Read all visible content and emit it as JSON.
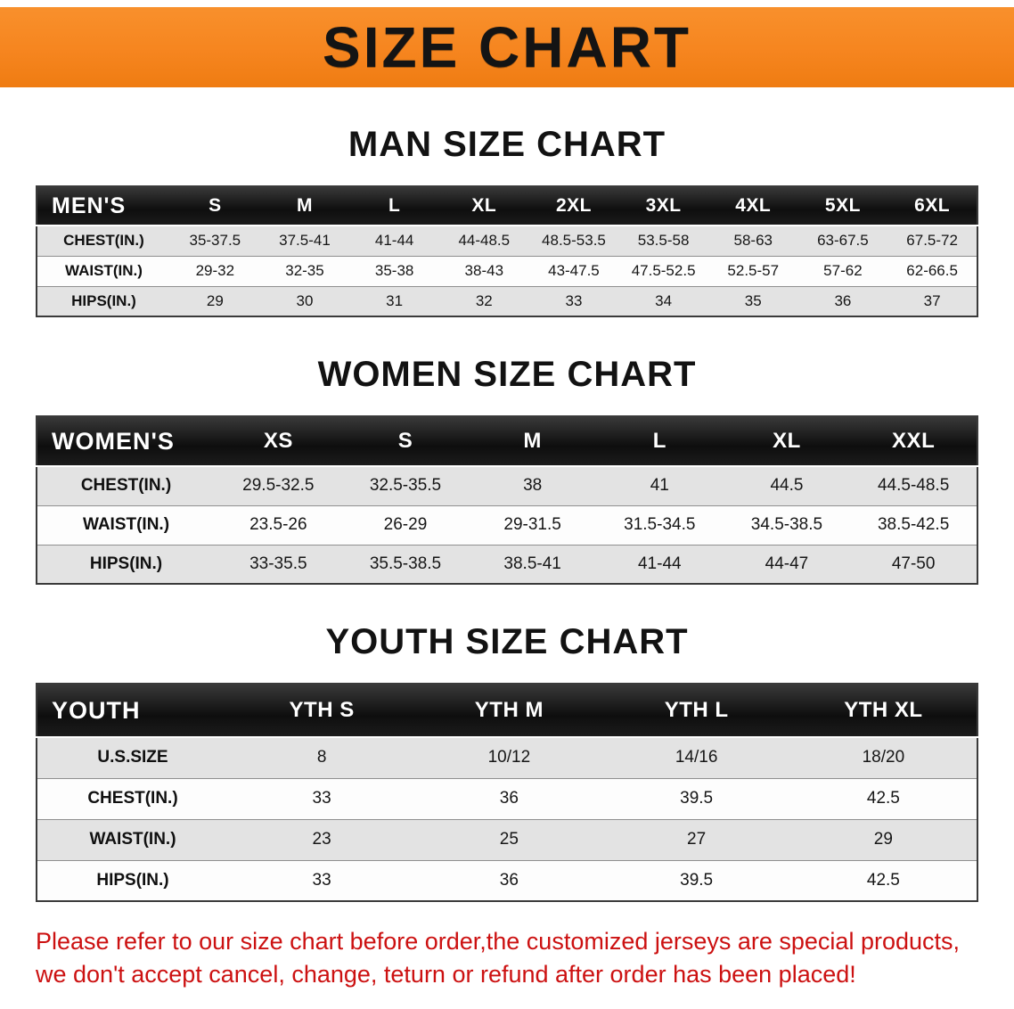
{
  "banner": {
    "title": "SIZE CHART",
    "background_color": "#f6851f",
    "text_color": "#141414"
  },
  "sections": [
    {
      "heading": "MAN SIZE CHART",
      "table": {
        "header": [
          "MEN'S",
          "S",
          "M",
          "L",
          "XL",
          "2XL",
          "3XL",
          "4XL",
          "5XL",
          "6XL"
        ],
        "rows": [
          [
            "CHEST(IN.)",
            "35-37.5",
            "37.5-41",
            "41-44",
            "44-48.5",
            "48.5-53.5",
            "53.5-58",
            "58-63",
            "63-67.5",
            "67.5-72"
          ],
          [
            "WAIST(IN.)",
            "29-32",
            "32-35",
            "35-38",
            "38-43",
            "43-47.5",
            "47.5-52.5",
            "52.5-57",
            "57-62",
            "62-66.5"
          ],
          [
            "HIPS(IN.)",
            "29",
            "30",
            "31",
            "32",
            "33",
            "34",
            "35",
            "36",
            "37"
          ]
        ]
      }
    },
    {
      "heading": "WOMEN SIZE CHART",
      "table": {
        "header": [
          "WOMEN'S",
          "XS",
          "S",
          "M",
          "L",
          "XL",
          "XXL"
        ],
        "rows": [
          [
            "CHEST(IN.)",
            "29.5-32.5",
            "32.5-35.5",
            "38",
            "41",
            "44.5",
            "44.5-48.5"
          ],
          [
            "WAIST(IN.)",
            "23.5-26",
            "26-29",
            "29-31.5",
            "31.5-34.5",
            "34.5-38.5",
            "38.5-42.5"
          ],
          [
            "HIPS(IN.)",
            "33-35.5",
            "35.5-38.5",
            "38.5-41",
            "41-44",
            "44-47",
            "47-50"
          ]
        ]
      }
    },
    {
      "heading": "YOUTH SIZE CHART",
      "table": {
        "header": [
          "YOUTH",
          "YTH S",
          "YTH M",
          "YTH L",
          "YTH XL"
        ],
        "rows": [
          [
            "U.S.SIZE",
            "8",
            "10/12",
            "14/16",
            "18/20"
          ],
          [
            "CHEST(IN.)",
            "33",
            "36",
            "39.5",
            "42.5"
          ],
          [
            "WAIST(IN.)",
            "23",
            "25",
            "27",
            "29"
          ],
          [
            "HIPS(IN.)",
            "33",
            "36",
            "39.5",
            "42.5"
          ]
        ]
      }
    }
  ],
  "disclaimer": {
    "line1": "Please refer to our size chart before order,the customized jerseys are special products,",
    "line2": "we don't accept cancel, change, teturn or refund after order has been placed!",
    "text_color": "#cc1111"
  }
}
